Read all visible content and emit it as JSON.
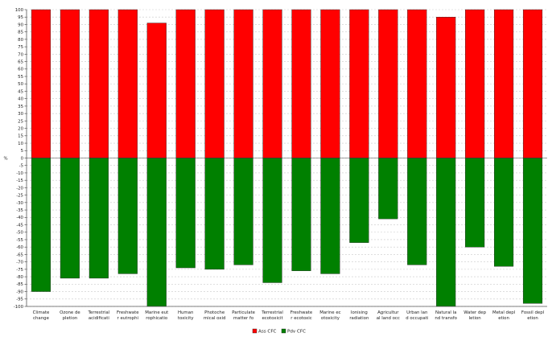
{
  "chart_data": {
    "type": "bar",
    "stacked": true,
    "ylabel": "%",
    "ylim": [
      -100,
      100
    ],
    "ytick_step": 5,
    "grid": true,
    "legend_position": "bottom-center",
    "categories": [
      [
        "Climate",
        "change"
      ],
      [
        "Ozone de",
        "pletion"
      ],
      [
        "Terrestrial",
        "acidificati"
      ],
      [
        "Freshwate",
        "r eutrophi"
      ],
      [
        "Marine eut",
        "rophicatio"
      ],
      [
        "Human",
        "toxicity"
      ],
      [
        "Photoche",
        "mical oxid"
      ],
      [
        "Particulate",
        "matter fo"
      ],
      [
        "Terrestrial",
        "ecotoxicit"
      ],
      [
        "Freshwate",
        "r ecotoxic"
      ],
      [
        "Marine ec",
        "otoxicity"
      ],
      [
        "Ionising",
        "radiation"
      ],
      [
        "Agricultur",
        "al land occ"
      ],
      [
        "Urban lan",
        "d occupati"
      ],
      [
        "Natural la",
        "nd transfo"
      ],
      [
        "Water dep",
        "letion"
      ],
      [
        "Metal depl",
        "etion"
      ],
      [
        "Fossil depl",
        "etion"
      ]
    ],
    "series": [
      {
        "name": "Ass CFC",
        "color": "#ff0000",
        "values": [
          100,
          100,
          100,
          100,
          91,
          100,
          100,
          100,
          100,
          100,
          100,
          100,
          100,
          100,
          95,
          100,
          100,
          100
        ]
      },
      {
        "name": "Pdv CFC",
        "color": "#008000",
        "values": [
          -90,
          -81,
          -81,
          -78,
          -100,
          -74,
          -75,
          -72,
          -84,
          -76,
          -78,
          -57,
          -41,
          -72,
          -100,
          -60,
          -73,
          -98
        ]
      }
    ]
  }
}
